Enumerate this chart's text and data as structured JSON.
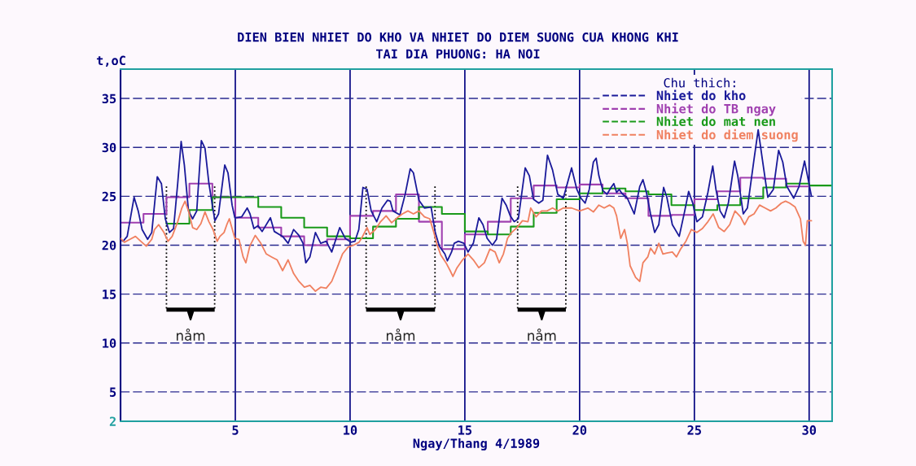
{
  "chart_data": {
    "type": "line",
    "title": "DIEN BIEN NHIET DO KHO VA NHIET DO DIEM SUONG CUA KHONG KHI",
    "subtitle": "TAI DIA PHUONG: HA NOI",
    "xlabel": "Ngay/Thang 4/1989",
    "ylabel": "t,oC",
    "legend_title": "Chu thich:",
    "xlim": [
      0,
      31
    ],
    "xticks": [
      5,
      10,
      15,
      20,
      25,
      30
    ],
    "ylim": [
      2,
      38
    ],
    "yticks": [
      2,
      5,
      10,
      15,
      20,
      25,
      30,
      35
    ],
    "grid": true,
    "legend": "top right",
    "series": [
      {
        "name": "Nhiet do kho",
        "color": "#1a1a9a",
        "x": [
          0,
          0.11,
          0.29,
          0.59,
          0.77,
          0.94,
          1.18,
          1.36,
          1.6,
          1.78,
          1.95,
          2.13,
          2.31,
          2.49,
          2.64,
          2.78,
          2.96,
          3.14,
          3.32,
          3.52,
          3.68,
          3.85,
          4.11,
          4.27,
          4.54,
          4.68,
          4.86,
          4.98,
          5.28,
          5.52,
          5.64,
          5.81,
          5.99,
          6.17,
          6.53,
          6.7,
          7.06,
          7.3,
          7.54,
          7.77,
          7.95,
          8.07,
          8.25,
          8.49,
          8.72,
          8.96,
          9.2,
          9.55,
          9.79,
          10.03,
          10.21,
          10.38,
          10.56,
          10.74,
          10.92,
          11.16,
          11.39,
          11.63,
          11.75,
          11.87,
          12.17,
          12.4,
          12.62,
          12.76,
          13.0,
          13.24,
          13.53,
          13.71,
          13.89,
          14.13,
          14.24,
          14.42,
          14.54,
          14.72,
          14.96,
          15.14,
          15.37,
          15.61,
          15.79,
          15.97,
          16.2,
          16.38,
          16.62,
          16.8,
          16.98,
          17.15,
          17.33,
          17.63,
          17.81,
          17.99,
          18.22,
          18.4,
          18.6,
          18.82,
          19.05,
          19.29,
          19.65,
          19.88,
          20.06,
          20.24,
          20.42,
          20.6,
          20.72,
          20.84,
          21.01,
          21.19,
          21.37,
          21.49,
          21.61,
          21.73,
          21.84,
          22.08,
          22.38,
          22.62,
          22.76,
          22.91,
          23.09,
          23.27,
          23.45,
          23.66,
          23.8,
          24.04,
          24.34,
          24.58,
          24.75,
          24.93,
          25.11,
          25.35,
          25.59,
          25.8,
          25.94,
          26.12,
          26.3,
          26.48,
          26.75,
          26.89,
          27.13,
          27.31,
          27.6,
          27.78,
          27.96,
          28.2,
          28.44,
          28.67,
          28.85,
          29.03,
          29.33,
          29.56,
          29.8,
          29.96,
          30.1
        ],
        "values": [
          20.6,
          20.4,
          20.9,
          24.9,
          23.5,
          21.6,
          20.6,
          21.3,
          27.0,
          26.3,
          22.7,
          21.3,
          21.7,
          26.3,
          30.6,
          28.2,
          23.5,
          22.7,
          23.5,
          30.7,
          29.9,
          26.3,
          22.5,
          23.2,
          28.2,
          27.4,
          24.1,
          22.8,
          22.9,
          23.8,
          23.2,
          21.7,
          22.0,
          21.4,
          22.8,
          21.4,
          20.9,
          20.2,
          21.6,
          21.0,
          20.2,
          18.2,
          18.8,
          21.3,
          20.2,
          20.4,
          19.3,
          21.8,
          20.7,
          20.3,
          20.4,
          21.6,
          25.9,
          25.7,
          23.5,
          22.4,
          23.8,
          24.6,
          24.5,
          23.5,
          23.1,
          25.2,
          27.8,
          27.4,
          24.6,
          23.8,
          23.9,
          21.3,
          19.9,
          19.1,
          18.4,
          19.3,
          20.2,
          20.4,
          20.2,
          19.3,
          20.2,
          22.8,
          22.1,
          20.7,
          20.0,
          20.6,
          24.8,
          24.1,
          23.0,
          22.4,
          22.7,
          27.9,
          27.1,
          24.7,
          24.3,
          24.6,
          29.2,
          27.7,
          25.2,
          24.8,
          27.9,
          25.7,
          24.8,
          24.3,
          25.7,
          28.5,
          28.9,
          27.1,
          25.6,
          25.2,
          25.9,
          26.3,
          25.4,
          25.7,
          25.3,
          24.8,
          23.2,
          26.0,
          26.7,
          25.4,
          23.2,
          21.3,
          22.1,
          25.9,
          24.9,
          22.1,
          20.9,
          23.5,
          25.5,
          24.3,
          22.4,
          22.9,
          25.4,
          28.1,
          25.7,
          23.5,
          22.8,
          24.3,
          28.6,
          27.1,
          23.2,
          23.8,
          28.8,
          31.8,
          28.8,
          24.9,
          25.7,
          29.7,
          28.5,
          26.0,
          24.8,
          26.0,
          28.6,
          26.7,
          25.0
        ]
      },
      {
        "name": "Nhiet do TB ngay",
        "type": "step",
        "color": "#a040b0",
        "x": [
          0,
          1,
          2,
          3,
          4,
          5,
          6,
          7,
          8,
          9,
          10,
          11,
          12,
          13,
          14,
          15,
          16,
          17,
          18,
          19,
          20,
          21,
          22,
          23,
          24,
          25,
          26,
          27,
          28,
          29,
          30
        ],
        "values": [
          22.3,
          23.2,
          24.9,
          26.3,
          24.9,
          22.8,
          21.8,
          20.9,
          20.0,
          20.6,
          23.0,
          23.5,
          25.2,
          22.4,
          19.6,
          21.1,
          22.4,
          24.8,
          26.1,
          25.9,
          26.2,
          25.3,
          24.8,
          23.0,
          23.1,
          24.7,
          25.5,
          26.9,
          26.8,
          26.0,
          26.0
        ]
      },
      {
        "name": "Nhiet do mat nen",
        "type": "step",
        "color": "#1a9a1a",
        "x": [
          2,
          3,
          4,
          5,
          6,
          7,
          8,
          9,
          10,
          11,
          12,
          13,
          14,
          15,
          16,
          17,
          18,
          19,
          20,
          21,
          22,
          23,
          24,
          25,
          26,
          27,
          28,
          29,
          30,
          31
        ],
        "values": [
          22.2,
          23.6,
          24.9,
          24.9,
          23.9,
          22.8,
          21.8,
          20.9,
          20.7,
          21.9,
          22.7,
          23.9,
          23.2,
          21.4,
          21.1,
          21.9,
          23.3,
          24.7,
          25.3,
          25.8,
          25.5,
          25.2,
          24.1,
          23.6,
          24.1,
          24.8,
          25.9,
          26.3,
          26.1,
          26.1
        ]
      },
      {
        "name": "Nhiet do diem suong",
        "color": "#f08060",
        "x": [
          0,
          0.17,
          0.41,
          0.65,
          0.88,
          1.12,
          1.36,
          1.48,
          1.66,
          1.89,
          2.07,
          2.25,
          2.49,
          2.67,
          2.81,
          2.96,
          3.14,
          3.32,
          3.5,
          3.68,
          3.85,
          4.03,
          4.21,
          4.33,
          4.51,
          4.63,
          4.74,
          4.86,
          4.98,
          5.16,
          5.34,
          5.46,
          5.63,
          5.87,
          6.11,
          6.35,
          6.58,
          6.82,
          7.06,
          7.3,
          7.54,
          7.77,
          8.01,
          8.25,
          8.49,
          8.72,
          8.96,
          9.2,
          9.44,
          9.67,
          9.91,
          10.15,
          10.39,
          10.5,
          10.74,
          10.86,
          11.1,
          11.33,
          11.57,
          11.81,
          12.05,
          12.28,
          12.52,
          12.76,
          13.0,
          13.24,
          13.47,
          13.65,
          13.77,
          13.95,
          14.18,
          14.36,
          14.48,
          14.66,
          14.9,
          15.14,
          15.37,
          15.61,
          15.85,
          16.09,
          16.32,
          16.5,
          16.68,
          16.86,
          17.04,
          17.27,
          17.51,
          17.75,
          17.87,
          18.1,
          18.34,
          18.58,
          18.82,
          19.05,
          19.29,
          19.65,
          20.0,
          20.36,
          20.6,
          20.84,
          21.07,
          21.31,
          21.49,
          21.61,
          21.79,
          21.96,
          22.08,
          22.2,
          22.44,
          22.62,
          22.76,
          22.97,
          23.09,
          23.27,
          23.45,
          23.63,
          23.8,
          24.04,
          24.22,
          24.4,
          24.63,
          24.87,
          25.11,
          25.35,
          25.59,
          25.82,
          26.06,
          26.3,
          26.54,
          26.77,
          27.01,
          27.19,
          27.37,
          27.6,
          27.84,
          28.08,
          28.32,
          28.55,
          28.79,
          28.97,
          29.15,
          29.39,
          29.62,
          29.74,
          29.84,
          29.92,
          30.1
        ],
        "values": [
          20.7,
          20.3,
          20.6,
          20.9,
          20.4,
          19.9,
          20.6,
          21.6,
          22.1,
          21.3,
          20.4,
          20.9,
          22.4,
          23.8,
          24.5,
          23.5,
          21.8,
          21.6,
          22.2,
          23.4,
          22.4,
          21.6,
          20.4,
          20.9,
          21.3,
          22.1,
          22.7,
          21.7,
          20.7,
          20.6,
          18.8,
          18.2,
          19.9,
          21.0,
          20.2,
          19.1,
          18.8,
          18.5,
          17.4,
          18.5,
          17.1,
          16.3,
          15.7,
          15.9,
          15.3,
          15.7,
          15.6,
          16.3,
          17.7,
          19.1,
          19.8,
          20.0,
          20.3,
          20.7,
          21.8,
          21.1,
          21.6,
          22.4,
          23.0,
          22.3,
          22.8,
          23.2,
          23.5,
          23.2,
          23.5,
          22.9,
          22.7,
          21.3,
          20.2,
          19.0,
          18.2,
          17.4,
          16.8,
          17.7,
          18.5,
          19.1,
          18.5,
          17.7,
          18.2,
          19.6,
          19.3,
          18.2,
          19.1,
          20.7,
          21.3,
          21.8,
          22.5,
          22.4,
          23.8,
          22.9,
          23.5,
          23.5,
          23.8,
          23.5,
          23.8,
          23.8,
          23.5,
          23.8,
          23.4,
          24.1,
          23.8,
          24.1,
          23.8,
          23.0,
          20.7,
          21.6,
          20.2,
          17.9,
          16.7,
          16.3,
          18.2,
          18.8,
          19.7,
          19.1,
          20.2,
          19.1,
          19.2,
          19.3,
          18.8,
          19.6,
          20.4,
          21.6,
          21.3,
          21.7,
          22.4,
          23.2,
          21.8,
          21.4,
          22.1,
          23.5,
          22.9,
          22.1,
          22.9,
          23.2,
          24.1,
          23.8,
          23.5,
          23.8,
          24.3,
          24.5,
          24.3,
          23.9,
          22.7,
          20.4,
          20.0,
          22.5,
          22.5
        ]
      }
    ],
    "ref_lines": [
      {
        "axis": "x",
        "value": 2.0,
        "color": "#000000",
        "line_style": "dotted"
      },
      {
        "axis": "x",
        "value": 4.1,
        "color": "#000000",
        "line_style": "dotted"
      },
      {
        "axis": "x",
        "value": 10.7,
        "color": "#000000",
        "line_style": "dotted"
      },
      {
        "axis": "x",
        "value": 13.7,
        "color": "#000000",
        "line_style": "dotted"
      },
      {
        "axis": "x",
        "value": 17.3,
        "color": "#000000",
        "line_style": "dotted"
      },
      {
        "axis": "x",
        "value": 19.4,
        "color": "#000000",
        "line_style": "dotted"
      }
    ],
    "annotations": [
      "nåm",
      "nåm",
      "nåm"
    ]
  }
}
